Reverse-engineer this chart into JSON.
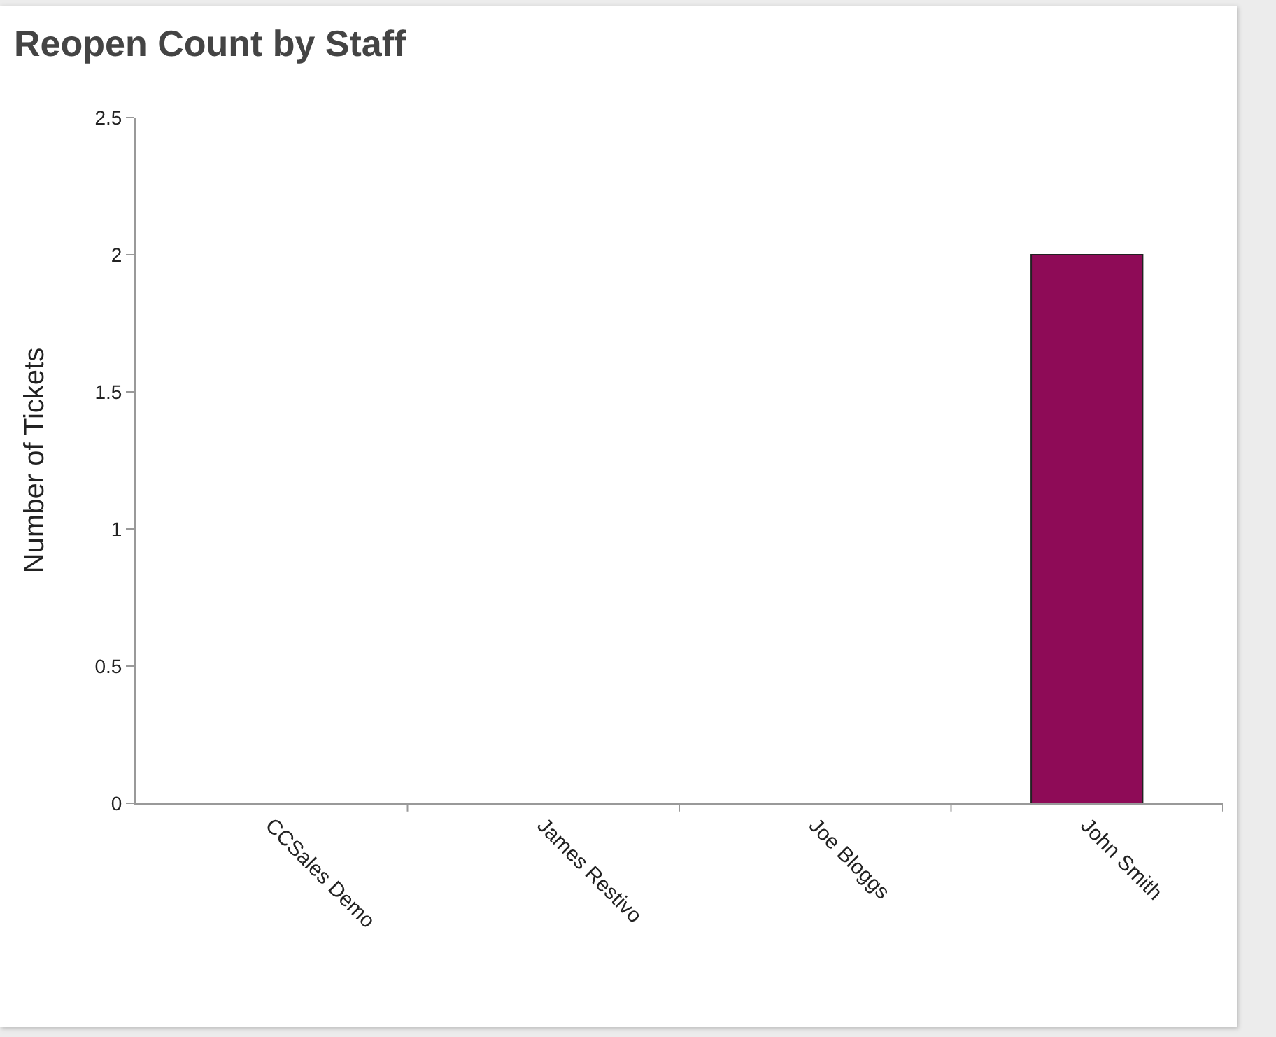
{
  "chart_data": {
    "type": "bar",
    "title": "Reopen Count by Staff",
    "ylabel": "Number of Tickets",
    "categories": [
      "CCSales Demo",
      "James Restivo",
      "Joe Bloggs",
      "John Smith"
    ],
    "values": [
      0,
      0,
      0,
      2
    ],
    "color": "#8e0b57",
    "ylim": [
      0,
      2.5
    ],
    "yticks": [
      0,
      0.5,
      1,
      1.5,
      2,
      2.5
    ],
    "grid": false
  }
}
